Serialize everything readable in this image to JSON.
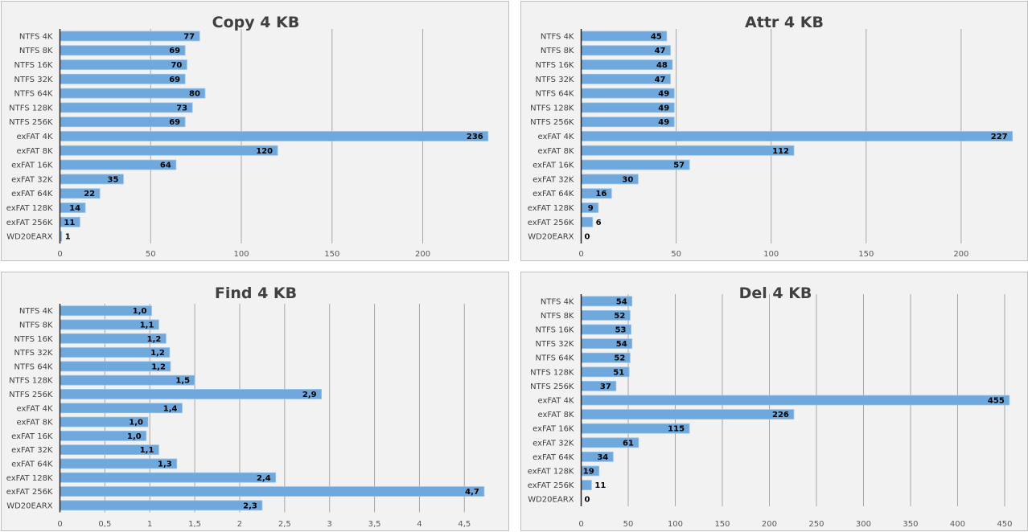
{
  "colors": {
    "bar": "#6fa8dc",
    "bar_stroke": "#9dc3e6",
    "grid": "#a6a6a6",
    "axis": "#262626",
    "panel": "#f2f2f2"
  },
  "chart_data": [
    {
      "type": "bar",
      "orientation": "horizontal",
      "title": "Copy 4 KB",
      "xlabel": "",
      "ylabel": "",
      "categories": [
        "NTFS 4K",
        "NTFS 8K",
        "NTFS 16K",
        "NTFS 32K",
        "NTFS 64K",
        "NTFS 128K",
        "NTFS 256K",
        "exFAT 4K",
        "exFAT 8K",
        "exFAT 16K",
        "exFAT 32K",
        "exFAT 64K",
        "exFAT 128K",
        "exFAT 256K",
        "WD20EARX"
      ],
      "values": [
        77,
        69,
        70,
        69,
        80,
        73,
        69,
        236,
        120,
        64,
        35,
        22,
        14,
        11,
        1
      ],
      "value_labels": [
        "77",
        "69",
        "70",
        "69",
        "80",
        "73",
        "69",
        "236",
        "120",
        "64",
        "35",
        "22",
        "14",
        "11",
        "1"
      ],
      "xlim": [
        0,
        237
      ],
      "ticks": [
        0,
        50,
        100,
        150,
        200
      ],
      "tick_labels": [
        "0",
        "50",
        "100",
        "150",
        "200"
      ],
      "grid": true,
      "legend": "none"
    },
    {
      "type": "bar",
      "orientation": "horizontal",
      "title": "Attr 4 KB",
      "xlabel": "",
      "ylabel": "",
      "categories": [
        "NTFS 4K",
        "NTFS 8K",
        "NTFS 16K",
        "NTFS 32K",
        "NTFS 64K",
        "NTFS 128K",
        "NTFS 256K",
        "exFAT 4K",
        "exFAT 8K",
        "exFAT 16K",
        "exFAT 32K",
        "exFAT 64K",
        "exFAT 128K",
        "exFAT 256K",
        "WD20EARX"
      ],
      "values": [
        45,
        47,
        48,
        47,
        49,
        49,
        49,
        227,
        112,
        57,
        30,
        16,
        9,
        6,
        0
      ],
      "value_labels": [
        "45",
        "47",
        "48",
        "47",
        "49",
        "49",
        "49",
        "227",
        "112",
        "57",
        "30",
        "16",
        "9",
        "6",
        "0"
      ],
      "xlim": [
        0,
        228
      ],
      "ticks": [
        0,
        50,
        100,
        150,
        200
      ],
      "tick_labels": [
        "0",
        "50",
        "100",
        "150",
        "200"
      ],
      "grid": true,
      "legend": "none"
    },
    {
      "type": "bar",
      "orientation": "horizontal",
      "title": "Find 4 KB",
      "xlabel": "",
      "ylabel": "",
      "categories": [
        "NTFS 4K",
        "NTFS 8K",
        "NTFS 16K",
        "NTFS 32K",
        "NTFS 64K",
        "NTFS 128K",
        "NTFS 256K",
        "exFAT 4K",
        "exFAT 8K",
        "exFAT 16K",
        "exFAT 32K",
        "exFAT 64K",
        "exFAT 128K",
        "exFAT 256K",
        "WD20EARX"
      ],
      "values": [
        1.02,
        1.1,
        1.18,
        1.22,
        1.23,
        1.5,
        2.91,
        1.36,
        0.98,
        0.96,
        1.1,
        1.3,
        2.4,
        4.72,
        2.25
      ],
      "value_labels": [
        "1,0",
        "1,1",
        "1,2",
        "1,2",
        "1,2",
        "1,5",
        "2,9",
        "1,4",
        "1,0",
        "1,0",
        "1,1",
        "1,3",
        "2,4",
        "4,7",
        "2,3"
      ],
      "xlim": [
        0,
        4.9
      ],
      "ticks": [
        0,
        0.5,
        1,
        1.5,
        2,
        2.5,
        3,
        3.5,
        4,
        4.5
      ],
      "tick_labels": [
        "0",
        "0,5",
        "1",
        "1,5",
        "2",
        "2,5",
        "3",
        "3,5",
        "4",
        "4,5"
      ],
      "grid": true,
      "legend": "none"
    },
    {
      "type": "bar",
      "orientation": "horizontal",
      "title": "Del 4 KB",
      "xlabel": "",
      "ylabel": "",
      "categories": [
        "NTFS 4K",
        "NTFS 8K",
        "NTFS 16K",
        "NTFS 32K",
        "NTFS 64K",
        "NTFS 128K",
        "NTFS 256K",
        "exFAT 4K",
        "exFAT 8K",
        "exFAT 16K",
        "exFAT 32K",
        "exFAT 64K",
        "exFAT 128K",
        "exFAT 256K",
        "WD20EARX"
      ],
      "values": [
        54,
        52,
        53,
        54,
        52,
        51,
        37,
        455,
        226,
        115,
        61,
        34,
        19,
        11,
        0
      ],
      "value_labels": [
        "54",
        "52",
        "53",
        "54",
        "52",
        "51",
        "37",
        "455",
        "226",
        "115",
        "61",
        "34",
        "19",
        "11",
        "0"
      ],
      "xlim": [
        0,
        462
      ],
      "ticks": [
        0,
        50,
        100,
        150,
        200,
        250,
        300,
        350,
        400,
        450
      ],
      "tick_labels": [
        "0",
        "50",
        "100",
        "150",
        "200",
        "250",
        "300",
        "350",
        "400",
        "450"
      ],
      "grid": true,
      "legend": "none"
    }
  ]
}
